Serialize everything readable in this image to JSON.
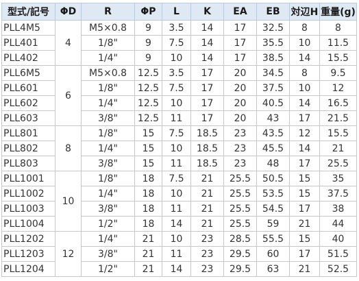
{
  "headers": [
    "型式/記号",
    "ΦD",
    "R",
    "ΦP",
    "L",
    "K",
    "EA",
    "EB",
    "対辺H",
    "重量(g)"
  ],
  "groups": [
    {
      "od": "4",
      "rows": [
        [
          "PLL4M5",
          "M5×0.8",
          "9",
          "3.5",
          "14",
          "17",
          "32.5",
          "8",
          "8"
        ],
        [
          "PLL401",
          "1/8\"",
          "9",
          "7.5",
          "14",
          "17",
          "35.5",
          "10",
          "11.5"
        ],
        [
          "PLL402",
          "1/4\"",
          "9",
          "10",
          "14",
          "17",
          "38.5",
          "14",
          "15.5"
        ]
      ]
    },
    {
      "od": "6",
      "rows": [
        [
          "PLL6M5",
          "M5×0.8",
          "12.5",
          "3.5",
          "17",
          "20",
          "34.5",
          "8",
          "9.5"
        ],
        [
          "PLL601",
          "1/8\"",
          "12.5",
          "7.5",
          "17",
          "20",
          "37.5",
          "10",
          "12"
        ],
        [
          "PLL602",
          "1/4\"",
          "12.5",
          "10",
          "17",
          "20",
          "40.5",
          "14",
          "16.5"
        ],
        [
          "PLL603",
          "3/8\"",
          "12.5",
          "11",
          "17",
          "20",
          "43",
          "17",
          "21.5"
        ]
      ]
    },
    {
      "od": "8",
      "rows": [
        [
          "PLL801",
          "1/8\"",
          "15",
          "7.5",
          "18.5",
          "23",
          "43.5",
          "12",
          "15.5"
        ],
        [
          "PLL802",
          "1/4\"",
          "15",
          "10",
          "18.5",
          "23",
          "45.5",
          "14",
          "21"
        ],
        [
          "PLL803",
          "3/8\"",
          "15",
          "11",
          "18.5",
          "23",
          "48",
          "17",
          "25.5"
        ]
      ]
    },
    {
      "od": "10",
      "rows": [
        [
          "PLL1001",
          "1/8\"",
          "18",
          "7.5",
          "21",
          "25.5",
          "50.5",
          "15",
          "35"
        ],
        [
          "PLL1002",
          "1/4\"",
          "18",
          "10",
          "21",
          "25.5",
          "53.5",
          "15",
          "37.5"
        ],
        [
          "PLL1003",
          "3/8\"",
          "18",
          "11",
          "21",
          "25.5",
          "54.5",
          "17",
          "38"
        ],
        [
          "PLL1004",
          "1/2\"",
          "18",
          "14",
          "21",
          "25.5",
          "59",
          "21",
          "44"
        ]
      ]
    },
    {
      "od": "12",
      "rows": [
        [
          "PLL1202",
          "1/4\"",
          "21",
          "10",
          "23",
          "28.5",
          "55.5",
          "15",
          "40"
        ],
        [
          "PLL1203",
          "3/8\"",
          "21",
          "11",
          "23",
          "29.5",
          "60",
          "17",
          "51.5"
        ],
        [
          "PLL1204",
          "1/2\"",
          "21",
          "14",
          "23",
          "29.5",
          "63",
          "21",
          "52.5"
        ]
      ]
    }
  ]
}
